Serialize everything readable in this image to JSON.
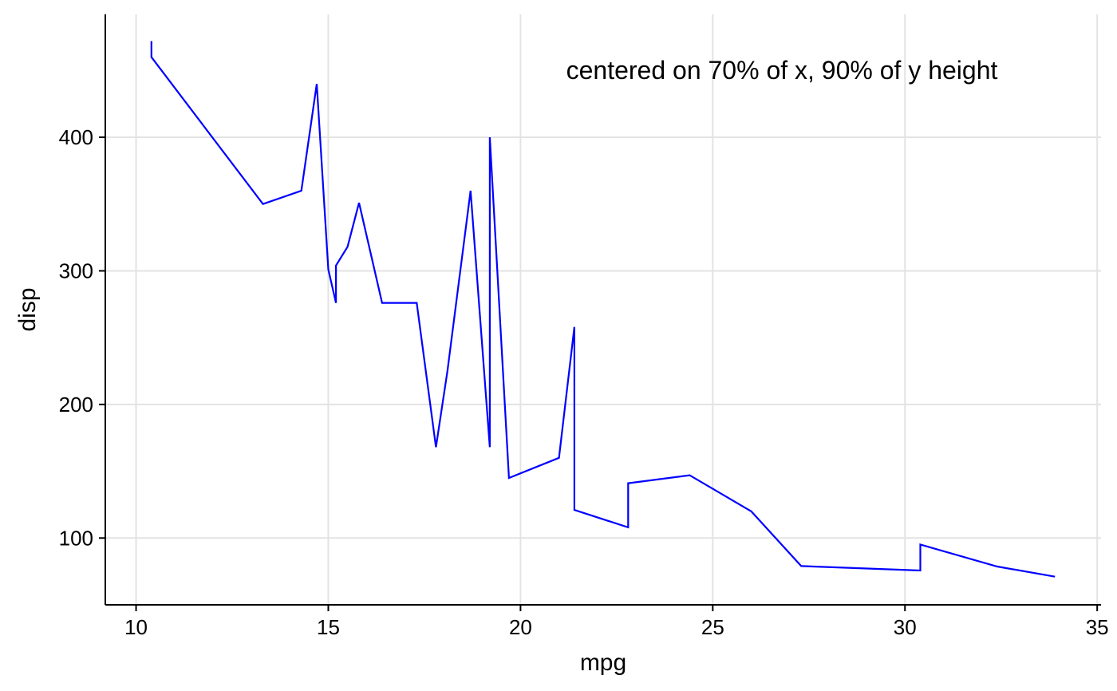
{
  "chart_data": {
    "type": "line",
    "title": "",
    "xlabel": "mpg",
    "ylabel": "disp",
    "xlim": [
      9.2,
      35.1
    ],
    "ylim": [
      50,
      492
    ],
    "x_ticks": [
      10,
      15,
      20,
      25,
      30,
      35
    ],
    "y_ticks": [
      100,
      200,
      300,
      400
    ],
    "grid": true,
    "line_color": "#0000ff",
    "annotation": {
      "text": "centered on 70% of x, 90% of y height"
    },
    "series": [
      {
        "points": [
          [
            10.4,
            472
          ],
          [
            10.4,
            460
          ],
          [
            13.3,
            350
          ],
          [
            14.3,
            360
          ],
          [
            14.7,
            440
          ],
          [
            15.0,
            301
          ],
          [
            15.2,
            276
          ],
          [
            15.2,
            304
          ],
          [
            15.5,
            318
          ],
          [
            15.8,
            351
          ],
          [
            16.4,
            276
          ],
          [
            17.3,
            276
          ],
          [
            17.8,
            168
          ],
          [
            18.1,
            225
          ],
          [
            18.7,
            360
          ],
          [
            19.2,
            168
          ],
          [
            19.2,
            400
          ],
          [
            19.7,
            145
          ],
          [
            21.0,
            160
          ],
          [
            21.4,
            258
          ],
          [
            21.4,
            121
          ],
          [
            22.8,
            108
          ],
          [
            22.8,
            141
          ],
          [
            24.4,
            147
          ],
          [
            26.0,
            120
          ],
          [
            27.3,
            79
          ],
          [
            30.4,
            75.7
          ],
          [
            30.4,
            95.1
          ],
          [
            32.4,
            78.7
          ],
          [
            33.9,
            71.1
          ]
        ]
      }
    ]
  }
}
